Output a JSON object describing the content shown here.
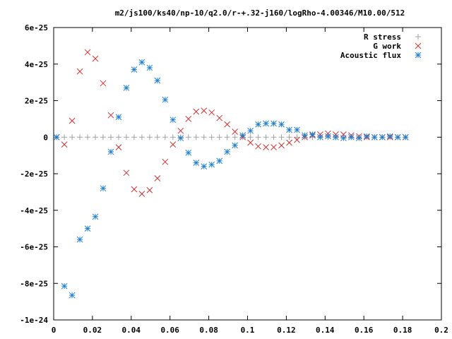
{
  "chart_data": {
    "type": "scatter",
    "title": "m2/js100/ks40/np-10/q2.0/r-+.32-j160/logRho-4.00346/M10.00/512",
    "xlabel": "",
    "ylabel": "",
    "xlim": [
      0,
      0.2
    ],
    "ylim": [
      -1e-24,
      6e-25
    ],
    "grid": false,
    "legend_position": "top-right",
    "x_ticks": [
      0,
      0.02,
      0.04,
      0.06,
      0.08,
      0.1,
      0.12,
      0.14,
      0.16,
      0.18,
      0.2
    ],
    "x_tick_labels": [
      "0",
      "0.02",
      "0.04",
      "0.06",
      "0.08",
      "0.1",
      "0.12",
      "0.14",
      "0.16",
      "0.18",
      "0.2"
    ],
    "y_ticks": [
      6e-25,
      4e-25,
      2e-25,
      0,
      -2e-25,
      -4e-25,
      -6e-25,
      -8e-25,
      -1e-24
    ],
    "y_tick_labels": [
      "6e-25",
      "4e-25",
      "2e-25",
      "0",
      "-2e-25",
      "-4e-25",
      "-6e-25",
      "-8e-25",
      "-1e-24"
    ],
    "series": [
      {
        "name": "R stress",
        "marker": "plus",
        "color": "#a0a0a0",
        "x": [
          0.0015,
          0.0055,
          0.0095,
          0.0135,
          0.0175,
          0.0215,
          0.0255,
          0.0295,
          0.0335,
          0.0375,
          0.0415,
          0.0455,
          0.0495,
          0.0535,
          0.0575,
          0.0615,
          0.0655,
          0.0695,
          0.0735,
          0.0775,
          0.0815,
          0.0855,
          0.0895,
          0.0935,
          0.0975,
          0.1015,
          0.1055,
          0.1095,
          0.1135,
          0.1175,
          0.1215,
          0.1255,
          0.1295,
          0.1335,
          0.1375,
          0.1415,
          0.1455,
          0.1495,
          0.1535,
          0.1575,
          0.1615,
          0.1655,
          0.1695,
          0.1735,
          0.1775,
          0.1815
        ],
        "y": [
          0,
          0,
          0,
          0,
          0,
          0,
          0,
          0,
          0,
          0,
          0,
          0,
          0,
          0,
          0,
          0,
          0,
          0,
          0,
          0,
          0,
          0,
          0,
          0,
          0,
          0,
          0,
          0,
          0,
          0,
          0,
          0,
          0,
          0,
          0,
          0,
          0,
          0,
          0,
          0,
          0,
          0,
          0,
          0,
          0,
          0
        ]
      },
      {
        "name": "G work",
        "marker": "cross",
        "color": "#d03030",
        "x": [
          0.0015,
          0.0055,
          0.0095,
          0.0135,
          0.0175,
          0.0215,
          0.0255,
          0.0295,
          0.0335,
          0.0375,
          0.0415,
          0.0455,
          0.0495,
          0.0535,
          0.0575,
          0.0615,
          0.0655,
          0.0695,
          0.0735,
          0.0775,
          0.0815,
          0.0855,
          0.0895,
          0.0935,
          0.0975,
          0.1015,
          0.1055,
          0.1095,
          0.1135,
          0.1175,
          0.1215,
          0.1255,
          0.1295,
          0.1335,
          0.1375,
          0.1415,
          0.1455,
          0.1495,
          0.1535,
          0.1575,
          0.1615,
          0.1655,
          0.1695,
          0.1735,
          0.1775,
          0.1815
        ],
        "y": [
          0,
          -4e-26,
          9e-26,
          3.6e-25,
          4.65e-25,
          4.3e-25,
          2.95e-25,
          1.2e-25,
          -5.5e-26,
          -1.95e-25,
          -2.85e-25,
          -3.1e-25,
          -2.9e-25,
          -2.25e-25,
          -1.35e-25,
          -4e-26,
          3.5e-26,
          1e-25,
          1.4e-25,
          1.45e-25,
          1.35e-25,
          1.05e-25,
          7e-26,
          3e-26,
          0,
          -3e-26,
          -5e-26,
          -5.5e-26,
          -5.5e-26,
          -4.5e-26,
          -3e-26,
          -1.5e-26,
          0,
          1e-26,
          1.5e-26,
          2e-26,
          1.5e-26,
          1.5e-26,
          1e-26,
          5e-27,
          0,
          0,
          0,
          0,
          0,
          0
        ]
      },
      {
        "name": "Acoustic flux",
        "marker": "star",
        "color": "#1e7fd0",
        "x": [
          0.0015,
          0.0055,
          0.0095,
          0.0135,
          0.0175,
          0.0215,
          0.0255,
          0.0295,
          0.0335,
          0.0375,
          0.0415,
          0.0455,
          0.0495,
          0.0535,
          0.0575,
          0.0615,
          0.0655,
          0.0695,
          0.0735,
          0.0775,
          0.0815,
          0.0855,
          0.0895,
          0.0935,
          0.0975,
          0.1015,
          0.1055,
          0.1095,
          0.1135,
          0.1175,
          0.1215,
          0.1255,
          0.1295,
          0.1335,
          0.1375,
          0.1415,
          0.1455,
          0.1495,
          0.1535,
          0.1575,
          0.1615,
          0.1655,
          0.1695,
          0.1735,
          0.1775,
          0.1815
        ],
        "y": [
          0,
          -8.15e-25,
          -8.65e-25,
          -5.6e-25,
          -5e-25,
          -4.35e-25,
          -2.8e-25,
          -8e-26,
          1.1e-25,
          2.7e-25,
          3.7e-25,
          4.1e-25,
          3.8e-25,
          3.1e-25,
          2.05e-25,
          9.5e-26,
          -5e-27,
          -8.5e-26,
          -1.4e-25,
          -1.6e-25,
          -1.5e-25,
          -1.3e-25,
          -8e-26,
          -4.5e-26,
          1e-26,
          3.5e-26,
          7e-26,
          7.5e-26,
          7.5e-26,
          7e-26,
          4e-26,
          4e-26,
          1e-26,
          1.5e-26,
          0,
          5e-27,
          0,
          -5e-27,
          0,
          -5e-27,
          5e-27,
          0,
          0,
          5e-27,
          0,
          0
        ]
      }
    ]
  }
}
